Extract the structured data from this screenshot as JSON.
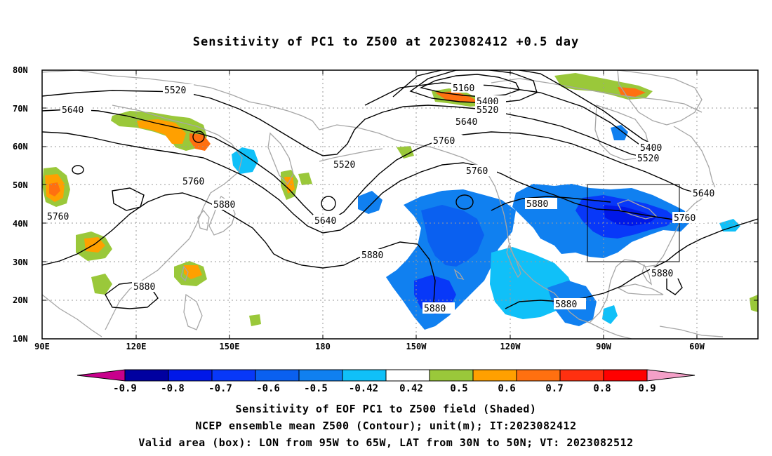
{
  "title": "Sensitivity of PC1 to Z500 at 2023082412 +0.5 day",
  "map": {
    "lat_labels": [
      "80N",
      "70N",
      "60N",
      "50N",
      "40N",
      "30N",
      "20N",
      "10N"
    ],
    "lon_labels": [
      "90E",
      "120E",
      "150E",
      "180",
      "150W",
      "120W",
      "90W",
      "60W"
    ],
    "contour_levels": [
      "5160",
      "5400",
      "5520",
      "5640",
      "5760",
      "5880"
    ],
    "valid_box": {
      "lon_from": "95W",
      "lon_to": "65W",
      "lat_from": "30N",
      "lat_to": "50N"
    }
  },
  "colorbar": {
    "labels": [
      "-0.9",
      "-0.8",
      "-0.7",
      "-0.6",
      "-0.5",
      "-0.42",
      "0.42",
      "0.5",
      "0.6",
      "0.7",
      "0.8",
      "0.9"
    ],
    "colors": [
      "#0000a0",
      "#0018e8",
      "#0838f8",
      "#0a60f0",
      "#1080f0",
      "#10c0f8",
      "#ffffff",
      "#9ac83a",
      "#ffa000",
      "#ff7010",
      "#ff3010",
      "#ff0000"
    ],
    "low_end_color": "#c8008c",
    "high_end_color": "#f4a0c8"
  },
  "captions": {
    "line1": "Sensitivity of EOF PC1 to Z500 field (Shaded)",
    "line2": "NCEP ensemble mean Z500 (Contour); unit(m); IT:2023082412",
    "line3": "Valid area (box): LON from 95W to 65W, LAT from 30N to 50N; VT: 2023082512"
  }
}
